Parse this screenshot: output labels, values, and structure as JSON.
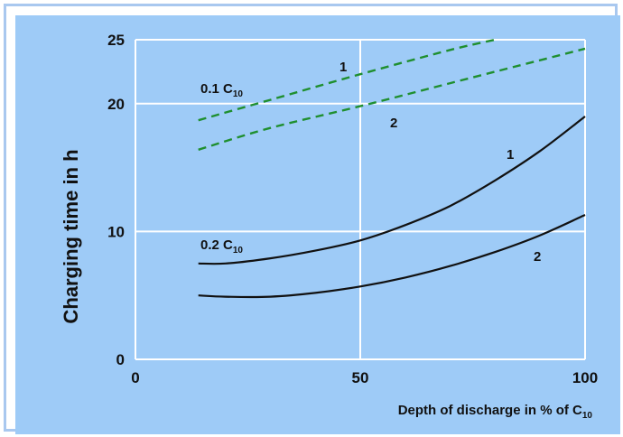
{
  "chart_data": {
    "type": "line",
    "xlabel": {
      "main": "Depth of discharge in % of C",
      "sub": "10"
    },
    "ylabel": "Charging time in h",
    "xlim": [
      0,
      100
    ],
    "ylim": [
      0,
      25
    ],
    "x_ticks": [
      "0",
      "50",
      "100"
    ],
    "y_ticks": [
      "0",
      "10",
      "20",
      "25"
    ],
    "grid": true,
    "series": [
      {
        "name": "1",
        "group": "0.1 C10",
        "style": "dashed",
        "color": "#1f8f2f",
        "x": [
          14,
          30,
          50,
          70,
          80
        ],
        "y": [
          18.7,
          20.3,
          22.3,
          24.2,
          25.0
        ]
      },
      {
        "name": "2",
        "group": "0.1 C10",
        "style": "dashed",
        "color": "#1f8f2f",
        "x": [
          14,
          30,
          50,
          70,
          90,
          100
        ],
        "y": [
          16.4,
          18.1,
          19.8,
          21.6,
          23.4,
          24.3
        ]
      },
      {
        "name": "1",
        "group": "0.2 C10",
        "style": "solid",
        "color": "#111111",
        "x": [
          14,
          20,
          30,
          40,
          50,
          60,
          70,
          80,
          90,
          100
        ],
        "y": [
          7.5,
          7.5,
          7.9,
          8.5,
          9.3,
          10.5,
          12.0,
          14.0,
          16.3,
          19.0
        ]
      },
      {
        "name": "2",
        "group": "0.2 C10",
        "style": "solid",
        "color": "#111111",
        "x": [
          14,
          20,
          30,
          40,
          50,
          60,
          70,
          80,
          90,
          100
        ],
        "y": [
          5.0,
          4.9,
          4.9,
          5.2,
          5.7,
          6.4,
          7.3,
          8.4,
          9.7,
          11.3
        ]
      }
    ],
    "annotations": [
      {
        "text": "0.1 C",
        "sub": "10"
      },
      {
        "text": "0.2 C",
        "sub": "10"
      },
      {
        "text": "1"
      },
      {
        "text": "2"
      },
      {
        "text": "1"
      },
      {
        "text": "2"
      }
    ],
    "colors": {
      "panel": "#9ecbf7",
      "frame": "#a9c8ef",
      "grid": "#ffffff",
      "dashed": "#1f8f2f",
      "solid": "#111111"
    }
  }
}
